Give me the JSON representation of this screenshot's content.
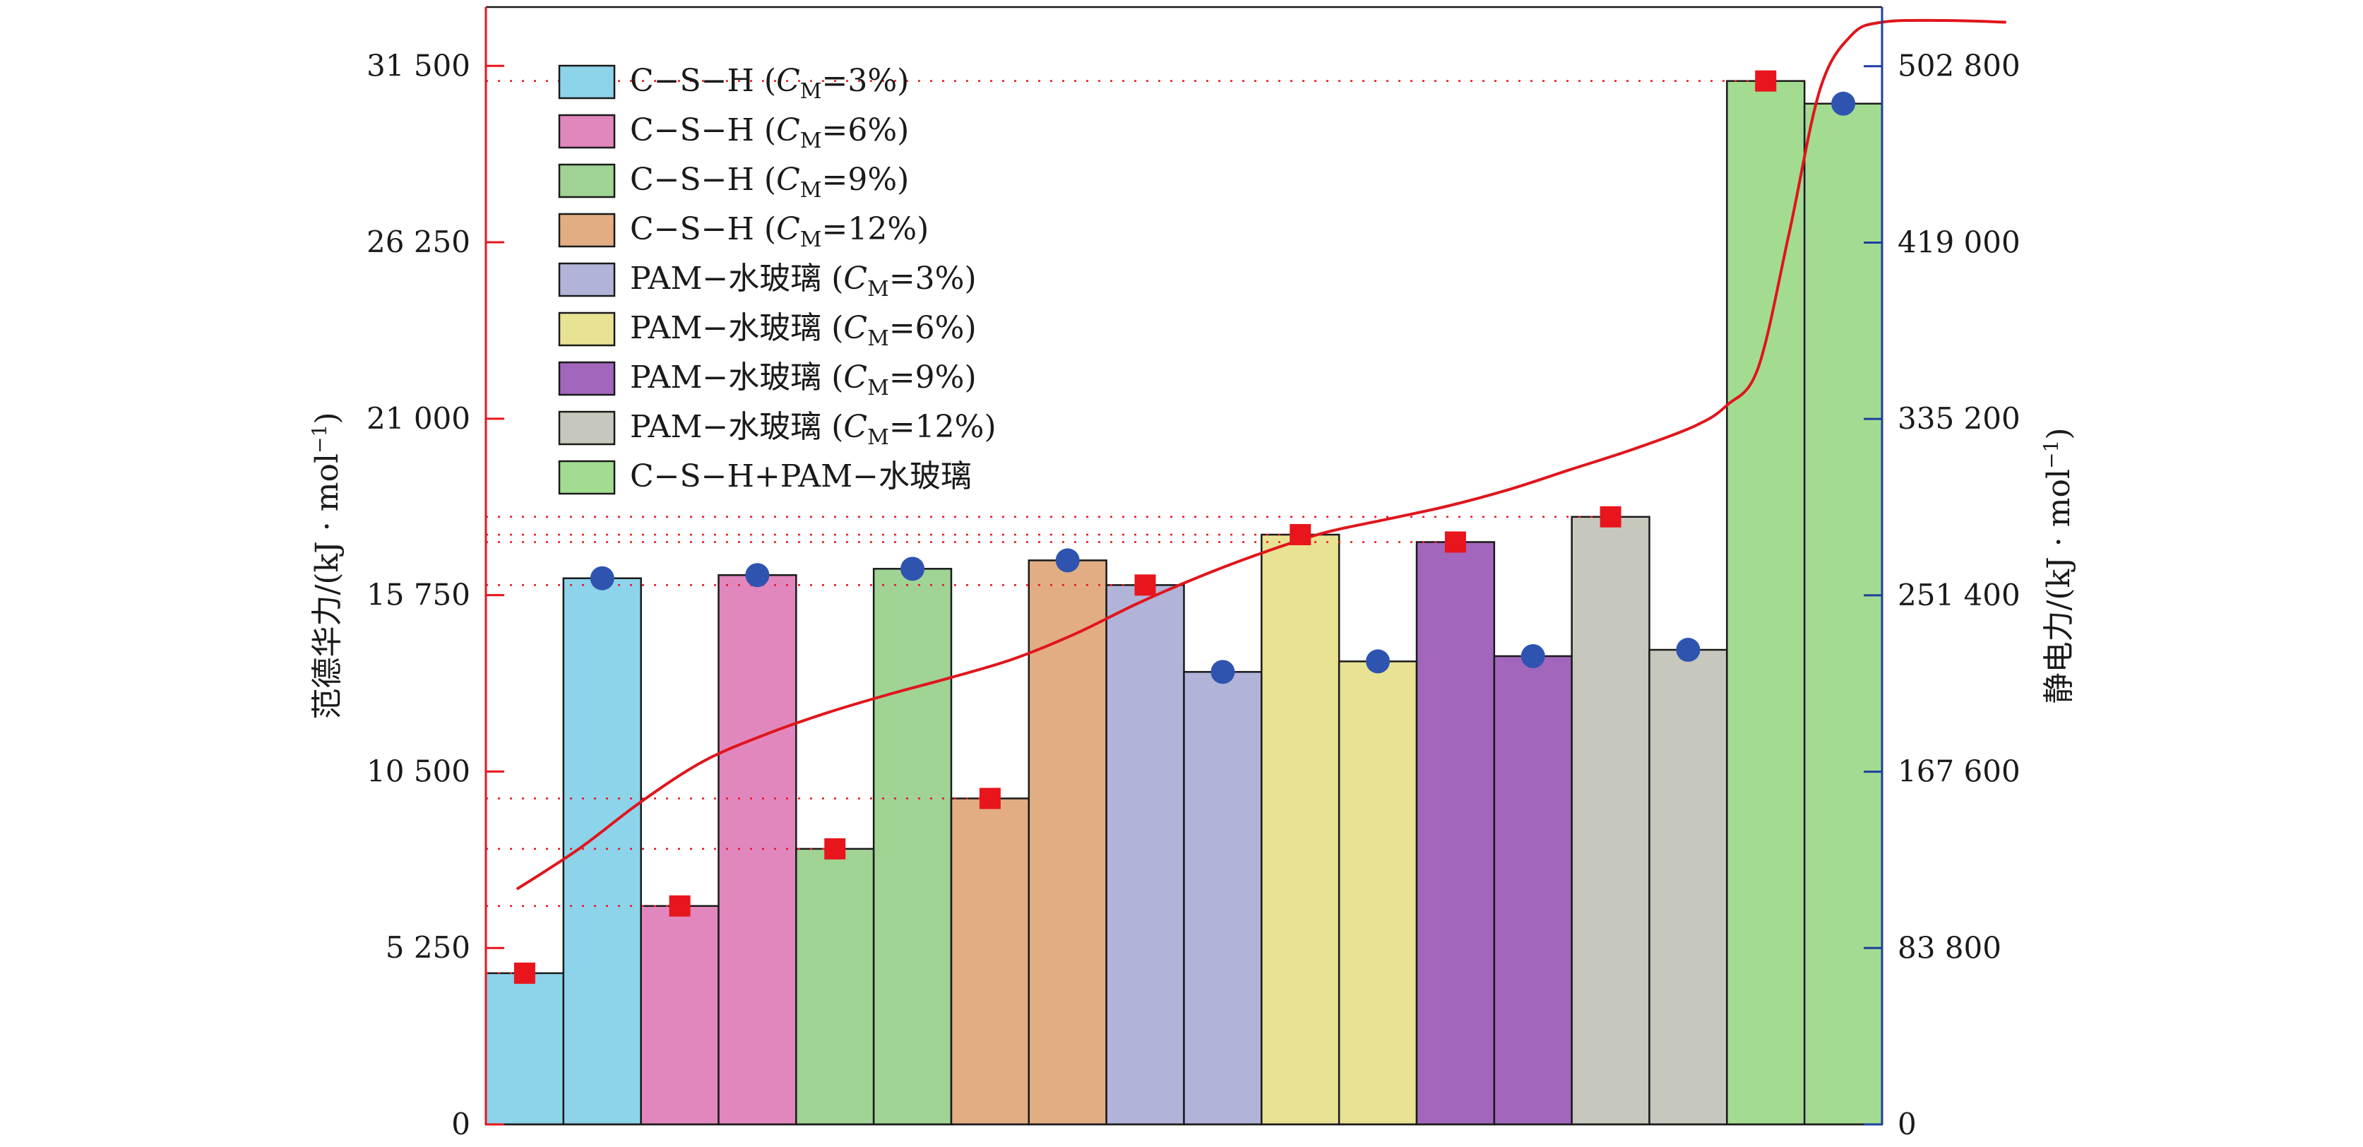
{
  "chart_data": {
    "type": "bar",
    "title": "",
    "y_left": {
      "label": "范德华力/(kJ · mol",
      "label_sup": "−1",
      "label_close": ")",
      "range": [
        0,
        33250
      ],
      "ticks": [
        0,
        5250,
        10500,
        15750,
        21000,
        26250,
        31500
      ],
      "tick_labels": [
        "0",
        "5 250",
        "10 500",
        "15 750",
        "21 000",
        "26 250",
        "31 500"
      ],
      "color": "#e8151c"
    },
    "y_right": {
      "label": "静电力/(kJ · mol",
      "label_sup": "−1",
      "label_close": ")",
      "range": [
        0,
        530900
      ],
      "ticks": [
        0,
        83800,
        167600,
        251400,
        335200,
        419000,
        502800
      ],
      "tick_labels": [
        "0",
        "83 800",
        "167 600",
        "251 400",
        "335 200",
        "419 000",
        "502 800"
      ],
      "color": "#1f3fa0"
    },
    "legend": [
      {
        "pre": "C−S−H (",
        "var": "C",
        "sub": "M",
        "post": "=3%)",
        "color": "#8dd3ea"
      },
      {
        "pre": "C−S−H (",
        "var": "C",
        "sub": "M",
        "post": "=6%)",
        "color": "#e187bd"
      },
      {
        "pre": "C−S−H (",
        "var": "C",
        "sub": "M",
        "post": "=9%)",
        "color": "#a0d394"
      },
      {
        "pre": "C−S−H (",
        "var": "C",
        "sub": "M",
        "post": "=12%)",
        "color": "#e2ad82"
      },
      {
        "pre": "PAM−水玻璃 (",
        "var": "C",
        "sub": "M",
        "post": "=3%)",
        "color": "#b2b3d8"
      },
      {
        "pre": "PAM−水玻璃 (",
        "var": "C",
        "sub": "M",
        "post": "=6%)",
        "color": "#e8e293"
      },
      {
        "pre": "PAM−水玻璃 (",
        "var": "C",
        "sub": "M",
        "post": "=9%)",
        "color": "#a266bc"
      },
      {
        "pre": "PAM−水玻璃 (",
        "var": "C",
        "sub": "M",
        "post": "=12%)",
        "color": "#c6c8bd"
      },
      {
        "pre": "C−S−H+PAM−水玻璃",
        "var": "",
        "sub": "",
        "post": "",
        "color": "#a3dc90"
      }
    ],
    "groups": [
      {
        "color": "#8dd3ea",
        "vdw": 4500,
        "elec": 259500
      },
      {
        "color": "#e187bd",
        "vdw": 6500,
        "elec": 261000
      },
      {
        "color": "#a0d394",
        "vdw": 8200,
        "elec": 264000
      },
      {
        "color": "#e2ad82",
        "vdw": 9700,
        "elec": 268000
      },
      {
        "color": "#b2b3d8",
        "vdw": 16050,
        "elec": 215000
      },
      {
        "color": "#e8e293",
        "vdw": 17550,
        "elec": 220000
      },
      {
        "color": "#a266bc",
        "vdw": 17330,
        "elec": 222500
      },
      {
        "color": "#c6c8bd",
        "vdw": 18080,
        "elec": 225500
      },
      {
        "color": "#a3dc90",
        "vdw": 31050,
        "elec": 485000
      }
    ],
    "marker_colors": {
      "vdw": "#e8151c",
      "elec": "#2f54b0"
    },
    "trend_line": {
      "color": "#e0151c",
      "x": [
        0.2,
        0.6,
        1.0,
        1.4,
        1.8,
        2.2,
        2.6,
        3.0,
        3.4,
        3.8,
        4.2,
        4.6,
        5.0,
        5.4,
        5.8,
        6.2,
        6.6,
        7.0,
        7.4,
        7.8,
        8.0,
        8.2,
        8.4,
        8.6,
        8.8,
        9.0,
        9.4,
        9.8
      ],
      "y": [
        7000,
        8200,
        9600,
        10800,
        11600,
        12250,
        12800,
        13300,
        13850,
        14600,
        15500,
        16300,
        17000,
        17600,
        18000,
        18400,
        18900,
        19500,
        20100,
        20800,
        21400,
        22500,
        26500,
        30800,
        32400,
        32800,
        32850,
        32800
      ]
    },
    "guides": {
      "style": "dotted",
      "color": "#e8151c"
    }
  }
}
